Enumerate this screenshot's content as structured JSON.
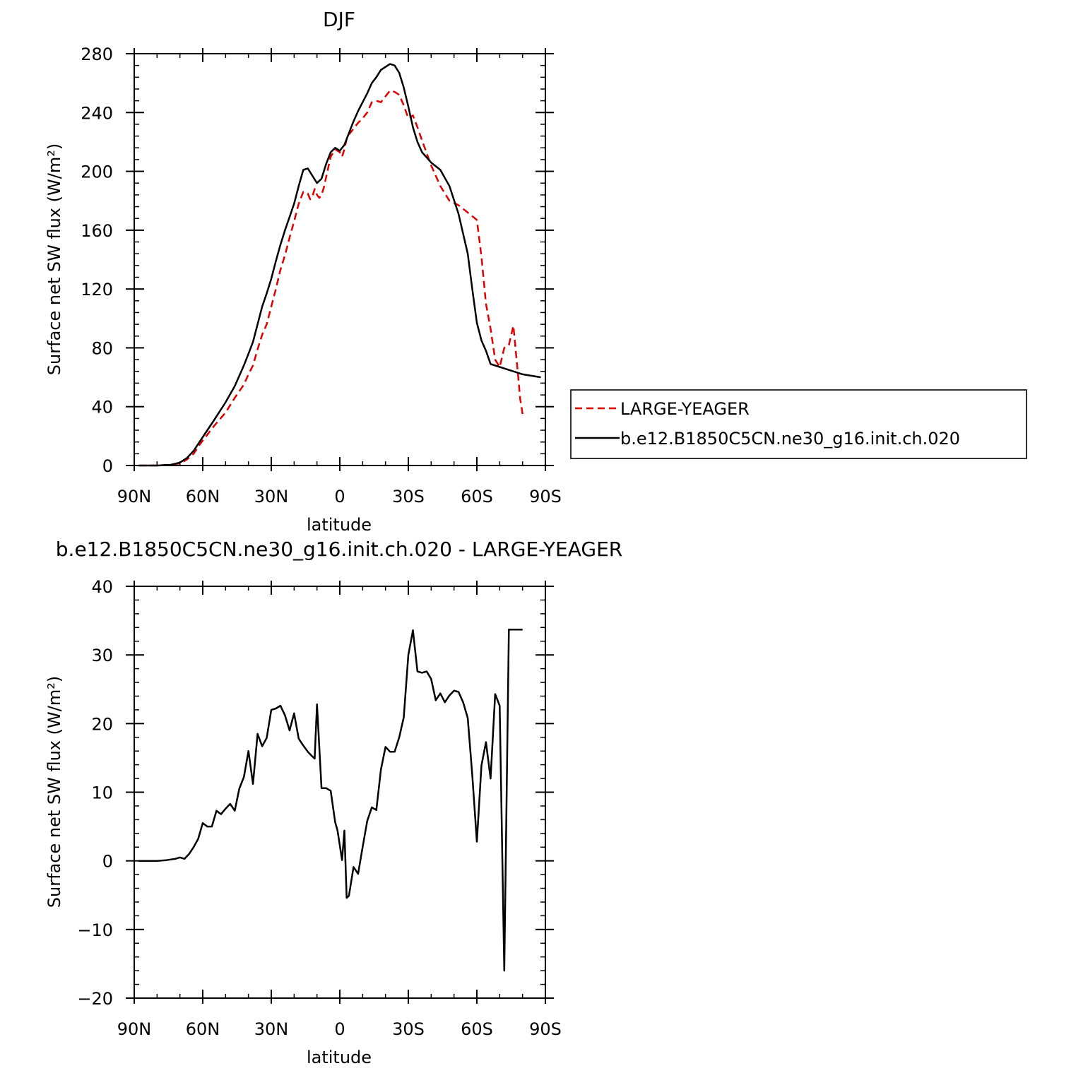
{
  "charts": [
    {
      "type": "line",
      "title": "DJF",
      "xlabel": "latitude",
      "ylabel": "Surface net SW flux (W/m²)",
      "xlim": [
        90,
        -90
      ],
      "ylim": [
        0,
        280
      ],
      "x_ticks": [
        90,
        60,
        30,
        0,
        -30,
        -60,
        -90
      ],
      "x_tick_labels": [
        "90N",
        "60N",
        "30N",
        "0",
        "30S",
        "60S",
        "90S"
      ],
      "y_ticks": [
        0,
        40,
        80,
        120,
        160,
        200,
        240,
        280
      ],
      "y_tick_labels": [
        "0",
        "40",
        "80",
        "120",
        "160",
        "200",
        "240",
        "280"
      ],
      "legend": [
        "LARGE-YEAGER",
        "b.e12.B1850C5CN.ne30_g16.init.ch.020"
      ],
      "legend_position": "right of plot"
    },
    {
      "type": "line",
      "title": "b.e12.B1850C5CN.ne30_g16.init.ch.020 - LARGE-YEAGER",
      "xlabel": "latitude",
      "ylabel": "Surface net SW flux (W/m²)",
      "xlim": [
        90,
        -90
      ],
      "ylim": [
        -20,
        40
      ],
      "x_ticks": [
        90,
        60,
        30,
        0,
        -30,
        -60,
        -90
      ],
      "x_tick_labels": [
        "90N",
        "60N",
        "30N",
        "0",
        "30S",
        "60S",
        "90S"
      ],
      "y_ticks": [
        -20,
        -10,
        0,
        10,
        20,
        30,
        40
      ],
      "y_tick_labels": [
        "−20",
        "−10",
        "0",
        "10",
        "20",
        "30",
        "40"
      ]
    }
  ],
  "chart_data": [
    {
      "type": "line",
      "title": "DJF",
      "xlabel": "latitude",
      "ylabel": "Surface net SW flux (W/m²)",
      "xlim": [
        90,
        -90
      ],
      "ylim": [
        0,
        280
      ],
      "series": [
        {
          "name": "LARGE-YEAGER",
          "color": "#e00000",
          "dash": "dashed",
          "x": [
            88,
            80,
            74,
            70,
            67,
            64,
            61,
            58,
            55,
            50,
            46,
            42,
            40,
            38,
            36,
            34,
            32,
            30,
            28,
            26,
            24,
            22,
            20,
            18,
            16,
            14,
            13,
            12,
            11,
            10,
            9,
            8,
            7,
            6,
            4,
            2,
            0,
            -1,
            -2,
            -3,
            -4,
            -6,
            -8,
            -10,
            -12,
            -14,
            -16,
            -18,
            -20,
            -22,
            -24,
            -26,
            -28,
            -30,
            -32,
            -34,
            -36,
            -40,
            -44,
            -48,
            -52,
            -56,
            -60,
            -62,
            -64,
            -66,
            -68,
            -70,
            -72,
            -74,
            -76,
            -78,
            -79,
            -80
          ],
          "y": [
            0,
            0,
            0.5,
            1.5,
            4,
            8,
            15,
            21,
            27,
            36,
            46,
            55,
            62,
            68,
            79,
            89,
            96,
            108,
            120,
            133,
            143,
            155,
            166,
            178,
            186,
            185,
            181,
            183,
            188,
            184,
            182,
            184,
            189,
            196,
            210,
            215,
            213,
            210,
            215,
            222,
            225,
            229,
            233,
            236,
            240,
            247,
            248,
            247,
            251,
            255,
            254,
            252,
            245,
            236,
            238,
            230,
            221,
            204,
            190,
            180,
            177,
            172,
            167,
            142,
            110,
            93,
            72,
            67,
            80,
            82,
            95,
            62,
            45,
            35
          ]
        },
        {
          "name": "b.e12.B1850C5CN.ne30_g16.init.ch.020",
          "color": "#000000",
          "dash": "solid",
          "x": [
            88,
            80,
            74,
            70,
            67,
            64,
            61,
            58,
            55,
            50,
            46,
            42,
            40,
            38,
            36,
            34,
            32,
            30,
            28,
            26,
            24,
            22,
            20,
            18,
            16,
            14,
            12,
            10,
            8,
            6,
            4,
            2,
            0,
            -2,
            -4,
            -6,
            -8,
            -10,
            -12,
            -14,
            -16,
            -18,
            -20,
            -22,
            -24,
            -26,
            -28,
            -30,
            -32,
            -34,
            -36,
            -40,
            -44,
            -48,
            -52,
            -56,
            -58,
            -60,
            -62,
            -64,
            -66,
            -68,
            -70,
            -72,
            -74,
            -76,
            -78,
            -80,
            -84,
            -88
          ],
          "y": [
            0,
            0,
            0.5,
            2,
            5,
            10,
            17,
            24,
            31,
            43,
            54,
            68,
            76,
            84,
            96,
            108,
            117,
            127,
            139,
            150,
            160,
            169,
            178,
            190,
            201,
            202,
            197,
            192,
            195,
            205,
            213,
            216,
            214,
            218,
            226,
            234,
            241,
            247,
            253,
            260,
            264,
            269,
            271,
            273,
            272,
            267,
            257,
            244,
            230,
            220,
            213,
            206,
            201,
            190,
            171,
            144,
            120,
            97,
            85,
            78,
            69,
            68,
            67,
            66,
            65,
            64,
            63,
            62,
            61,
            60
          ]
        }
      ]
    },
    {
      "type": "line",
      "title": "b.e12.B1850C5CN.ne30_g16.init.ch.020 - LARGE-YEAGER",
      "xlabel": "latitude",
      "ylabel": "Surface net SW flux (W/m²)",
      "xlim": [
        90,
        -90
      ],
      "ylim": [
        -20,
        40
      ],
      "series": [
        {
          "color": "#000000",
          "dash": "solid",
          "x": [
            88,
            80,
            76,
            72,
            70,
            68,
            66,
            64,
            62,
            60,
            58,
            56,
            54,
            52,
            50,
            48,
            46,
            44,
            42,
            40,
            38,
            36,
            34,
            32,
            30,
            28,
            26,
            24,
            22,
            20,
            18,
            16,
            14,
            12,
            11,
            10,
            8,
            6,
            4,
            2,
            1,
            -1,
            -2,
            -3,
            -4,
            -6,
            -8,
            -10,
            -12,
            -14,
            -16,
            -18,
            -20,
            -22,
            -24,
            -26,
            -28,
            -30,
            -32,
            -34,
            -36,
            -38,
            -40,
            -42,
            -44,
            -46,
            -48,
            -50,
            -52,
            -54,
            -56,
            -58,
            -60,
            -62,
            -64,
            -66,
            -68,
            -70,
            -72,
            -74,
            -76,
            -78,
            -80
          ],
          "y": [
            0,
            0,
            0.1,
            0.3,
            0.5,
            0.3,
            1,
            2,
            3.2,
            5.5,
            5,
            5,
            7.3,
            6.8,
            7.6,
            8.3,
            7.3,
            10.5,
            12.2,
            16,
            11.2,
            18.5,
            16.7,
            17.9,
            22,
            22.2,
            22.6,
            21.2,
            19,
            21.5,
            17.8,
            16.8,
            15.9,
            15.2,
            14.9,
            22.8,
            10.6,
            10.6,
            10.2,
            5.6,
            4.4,
            0.1,
            4.4,
            -5.4,
            -5.1,
            -0.9,
            -1.9,
            2,
            5.8,
            7.8,
            7.4,
            13.3,
            16.6,
            15.9,
            15.9,
            18,
            20.9,
            30,
            33.6,
            27.6,
            27.4,
            27.6,
            26.5,
            23.4,
            24.4,
            23.1,
            24.1,
            24.8,
            24.6,
            23.1,
            20.8,
            12.5,
            2.8,
            13.9,
            17.3,
            12,
            24.3,
            22.6,
            -16,
            33.7,
            33.7,
            33.7,
            33.7
          ]
        }
      ]
    }
  ]
}
